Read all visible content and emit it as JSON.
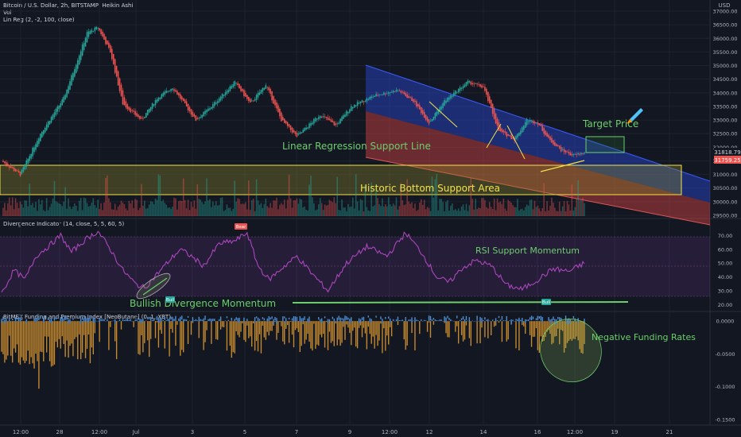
{
  "header": {
    "symbol_line": "Bitcoin / U.S. Dollar, 2h, BITSTAMP, Heikin Ashi",
    "vol_label": "Vol",
    "linreg_label": "Lin Reg (2, -2, 100, close)"
  },
  "panes": {
    "divergence_title": "Divergence Indicator (14, close, 5, 5, 60, 5)",
    "funding_title": "BitMEX Funding and Premium Index [NeoButane] (0, 1, XBT)"
  },
  "price_axis": {
    "currency": "USD",
    "ticks": [
      37000,
      36500,
      36000,
      35500,
      35000,
      34500,
      34000,
      33500,
      33000,
      32500,
      32000,
      31500,
      31000,
      30500,
      30000,
      29500
    ],
    "current_price": "31818.79",
    "second_price": "31759.25"
  },
  "rsi_axis": {
    "ticks": [
      "70.00",
      "60.00",
      "50.00",
      "40.00",
      "30.00",
      "20.00"
    ]
  },
  "funding_axis": {
    "ticks": [
      "0.0000",
      "-0.0500",
      "-0.1000",
      "-0.1500"
    ]
  },
  "time_axis": {
    "labels": [
      "12:00",
      "28",
      "12:00",
      "Jul",
      "3",
      "5",
      "7",
      "9",
      "12:00",
      "12",
      "14",
      "16",
      "12:00",
      "19",
      "21"
    ]
  },
  "annotations": {
    "target_price": "Target Price",
    "linreg_support": "Linear Regression Support Line",
    "historic_bottom": "Historic Bottom Support Area",
    "rsi_support": "RSI Support Momentum",
    "bullish_divergence": "Bullish Divergence Momentum",
    "negative_funding": "Negative Funding Rates",
    "bear_tag": "Bear",
    "bull_tag": "Bull"
  },
  "colors": {
    "background": "#131722",
    "up_candle": "#26a69a",
    "down_candle": "#ef5350",
    "rsi_line": "#ab47bc",
    "funding_positive": "#4e8fd6",
    "funding_negative": "#c68a2e",
    "annotation_green": "#6ccf6c",
    "support_yellow": "#f0e24a",
    "channel_upper": "#2b4ad8",
    "channel_lower": "#d64545"
  },
  "chart_data": [
    {
      "type": "candlestick",
      "title": "Bitcoin / U.S. Dollar, 2h, BITSTAMP, Heikin Ashi",
      "ylim": [
        29500,
        37000
      ],
      "x_labels": [
        "12:00",
        "28",
        "12:00",
        "Jul",
        "3",
        "5",
        "7",
        "9",
        "12:00",
        "12",
        "14",
        "16",
        "12:00"
      ],
      "close_path": [
        [
          0,
          31500
        ],
        [
          12,
          31000
        ],
        [
          25,
          32500
        ],
        [
          40,
          33800
        ],
        [
          55,
          36200
        ],
        [
          62,
          36400
        ],
        [
          70,
          35500
        ],
        [
          78,
          33600
        ],
        [
          90,
          33000
        ],
        [
          100,
          33800
        ],
        [
          110,
          34200
        ],
        [
          125,
          33000
        ],
        [
          135,
          33500
        ],
        [
          150,
          34400
        ],
        [
          160,
          33600
        ],
        [
          170,
          34300
        ],
        [
          180,
          33000
        ],
        [
          190,
          32400
        ],
        [
          205,
          33200
        ],
        [
          215,
          32800
        ],
        [
          225,
          33500
        ],
        [
          240,
          33900
        ],
        [
          255,
          34100
        ],
        [
          265,
          33700
        ],
        [
          275,
          32900
        ],
        [
          285,
          33700
        ],
        [
          300,
          34400
        ],
        [
          310,
          34200
        ],
        [
          320,
          32600
        ],
        [
          330,
          32300
        ],
        [
          338,
          33000
        ],
        [
          345,
          32900
        ],
        [
          352,
          32300
        ],
        [
          360,
          31900
        ],
        [
          368,
          31700
        ],
        [
          375,
          31800
        ]
      ]
    },
    {
      "type": "line",
      "title": "Divergence Indicator (14, close, 5, 5, 60, 5)",
      "ylim": [
        20,
        75
      ],
      "y_ticks": [
        70,
        60,
        50,
        40,
        30,
        20
      ],
      "values_path": [
        [
          0,
          28
        ],
        [
          8,
          45
        ],
        [
          15,
          38
        ],
        [
          22,
          55
        ],
        [
          30,
          62
        ],
        [
          38,
          70
        ],
        [
          45,
          58
        ],
        [
          55,
          68
        ],
        [
          62,
          73
        ],
        [
          70,
          60
        ],
        [
          78,
          45
        ],
        [
          86,
          35
        ],
        [
          92,
          32
        ],
        [
          100,
          42
        ],
        [
          108,
          52
        ],
        [
          115,
          60
        ],
        [
          122,
          55
        ],
        [
          130,
          48
        ],
        [
          140,
          64
        ],
        [
          150,
          66
        ],
        [
          158,
          72
        ],
        [
          165,
          48
        ],
        [
          172,
          38
        ],
        [
          180,
          46
        ],
        [
          190,
          55
        ],
        [
          200,
          42
        ],
        [
          210,
          30
        ],
        [
          222,
          50
        ],
        [
          235,
          62
        ],
        [
          248,
          55
        ],
        [
          260,
          72
        ],
        [
          270,
          58
        ],
        [
          280,
          40
        ],
        [
          288,
          36
        ],
        [
          296,
          46
        ],
        [
          305,
          52
        ],
        [
          315,
          48
        ],
        [
          325,
          34
        ],
        [
          335,
          31
        ],
        [
          345,
          38
        ],
        [
          355,
          46
        ],
        [
          365,
          44
        ],
        [
          375,
          50
        ]
      ],
      "annotations": [
        "Bear",
        "Bull",
        "Bull"
      ]
    },
    {
      "type": "bar",
      "title": "BitMEX Funding and Premium Index [NeoButane] (0, 1, XBT)",
      "ylim": [
        -0.155,
        0.005
      ],
      "y_ticks": [
        "0.0000",
        "-0.0500",
        "-0.1000",
        "-0.1500"
      ],
      "note_series": [
        "positive",
        "negative"
      ]
    }
  ]
}
